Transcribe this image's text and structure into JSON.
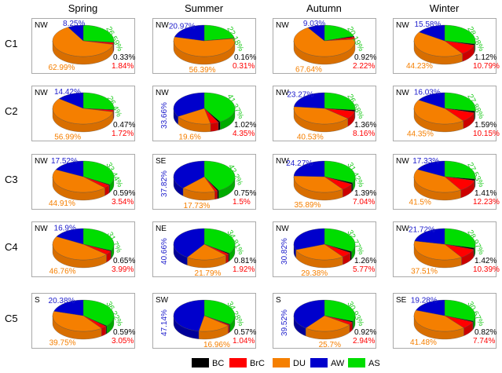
{
  "chart_data": {
    "type": "pie",
    "title": "",
    "columns": [
      "Spring",
      "Summer",
      "Autumn",
      "Winter"
    ],
    "rows": [
      "C1",
      "C2",
      "C3",
      "C4",
      "C5"
    ],
    "legend": {
      "placement": "bottom-right",
      "entries": [
        {
          "name": "BC",
          "color": "#000000"
        },
        {
          "name": "BrC",
          "color": "#ff0000"
        },
        {
          "name": "DU",
          "color": "#f57f00"
        },
        {
          "name": "AW",
          "color": "#0000cc"
        },
        {
          "name": "AS",
          "color": "#00dd00"
        }
      ]
    },
    "slice_order_clockwise_from_top": [
      "AS",
      "BC",
      "BrC",
      "DU",
      "AW"
    ],
    "panels": [
      [
        {
          "direction": "NW",
          "values": {
            "BC": 0.33,
            "BrC": 1.84,
            "DU": 62.99,
            "AW": 8.25,
            "AS": 26.59
          },
          "labels": {
            "BC": "0.33%",
            "BrC": "1.84%",
            "DU": "62.99%",
            "AW": "8.25%",
            "AS": "26.59%"
          }
        },
        {
          "direction": "NW",
          "values": {
            "BC": 0.16,
            "BrC": 0.31,
            "DU": 56.39,
            "AW": 20.97,
            "AS": 22.18
          },
          "labels": {
            "BC": "0.16%",
            "BrC": "0.31%",
            "DU": "56.39%",
            "AW": "20.97%",
            "AS": "22.18%"
          }
        },
        {
          "direction": "NW",
          "values": {
            "BC": 0.92,
            "BrC": 2.22,
            "DU": 67.64,
            "AW": 9.03,
            "AS": 20.19
          },
          "labels": {
            "BC": "0.92%",
            "BrC": "2.22%",
            "DU": "67.64%",
            "AW": "9.03%",
            "AS": "20.19%"
          }
        },
        {
          "direction": "NW",
          "values": {
            "BC": 1.12,
            "BrC": 10.79,
            "DU": 44.23,
            "AW": 15.58,
            "AS": 28.28
          },
          "labels": {
            "BC": "1.12%",
            "BrC": "10.79%",
            "DU": "44.23%",
            "AW": "15.58%",
            "AS": "28.28%"
          }
        }
      ],
      [
        {
          "direction": "NW",
          "values": {
            "BC": 0.47,
            "BrC": 1.72,
            "DU": 56.99,
            "AW": 14.42,
            "AS": 26.4
          },
          "labels": {
            "BC": "0.47%",
            "BrC": "1.72%",
            "DU": "56.99%",
            "AW": "14.42%",
            "AS": "26.4%"
          }
        },
        {
          "direction": "NW",
          "values": {
            "BC": 1.02,
            "BrC": 4.35,
            "DU": 19.6,
            "AW": 33.66,
            "AS": 41.37
          },
          "labels": {
            "BC": "1.02%",
            "BrC": "4.35%",
            "DU": "19.6%",
            "AW": "33.66%",
            "AS": "41.37%"
          }
        },
        {
          "direction": "NW",
          "values": {
            "BC": 1.36,
            "BrC": 8.16,
            "DU": 40.53,
            "AW": 23.27,
            "AS": 26.68
          },
          "labels": {
            "BC": "1.36%",
            "BrC": "8.16%",
            "DU": "40.53%",
            "AW": "23.27%",
            "AS": "26.68%"
          }
        },
        {
          "direction": "NW",
          "values": {
            "BC": 1.59,
            "BrC": 10.15,
            "DU": 44.35,
            "AW": 16.03,
            "AS": 27.88
          },
          "labels": {
            "BC": "1.59%",
            "BrC": "10.15%",
            "DU": "44.35%",
            "AW": "16.03%",
            "AS": "27.88%"
          }
        }
      ],
      [
        {
          "direction": "NW",
          "values": {
            "BC": 0.59,
            "BrC": 3.54,
            "DU": 44.91,
            "AW": 17.52,
            "AS": 33.44
          },
          "labels": {
            "BC": "0.59%",
            "BrC": "3.54%",
            "DU": "44.91%",
            "AW": "17.52%",
            "AS": "33.44%"
          }
        },
        {
          "direction": "SE",
          "values": {
            "BC": 0.75,
            "BrC": 1.5,
            "DU": 17.73,
            "AW": 37.82,
            "AS": 42.2
          },
          "labels": {
            "BC": "0.75%",
            "BrC": "1.5%",
            "DU": "17.73%",
            "AW": "37.82%",
            "AS": "42.2%"
          }
        },
        {
          "direction": "NW",
          "values": {
            "BC": 1.39,
            "BrC": 7.04,
            "DU": 35.89,
            "AW": 24.27,
            "AS": 31.42
          },
          "labels": {
            "BC": "1.39%",
            "BrC": "7.04%",
            "DU": "35.89%",
            "AW": "24.27%",
            "AS": "31.42%"
          }
        },
        {
          "direction": "NW",
          "values": {
            "BC": 1.41,
            "BrC": 12.23,
            "DU": 41.5,
            "AW": 17.33,
            "AS": 27.53
          },
          "labels": {
            "BC": "1.41%",
            "BrC": "12.23%",
            "DU": "41.5%",
            "AW": "17.33%",
            "AS": "27.53%"
          }
        }
      ],
      [
        {
          "direction": "NW",
          "values": {
            "BC": 0.65,
            "BrC": 3.99,
            "DU": 46.76,
            "AW": 16.9,
            "AS": 31.7
          },
          "labels": {
            "BC": "0.65%",
            "BrC": "3.99%",
            "DU": "46.76%",
            "AW": "16.9%",
            "AS": "31.7%"
          }
        },
        {
          "direction": "NE",
          "values": {
            "BC": 0.81,
            "BrC": 1.92,
            "DU": 21.79,
            "AW": 40.66,
            "AS": 34.81
          },
          "labels": {
            "BC": "0.81%",
            "BrC": "1.92%",
            "DU": "21.79%",
            "AW": "40.66%",
            "AS": "34.81%"
          }
        },
        {
          "direction": "NW",
          "values": {
            "BC": 1.26,
            "BrC": 5.77,
            "DU": 29.38,
            "AW": 30.82,
            "AS": 32.77
          },
          "labels": {
            "BC": "1.26%",
            "BrC": "5.77%",
            "DU": "29.38%",
            "AW": "30.82%",
            "AS": "32.77%"
          }
        },
        {
          "direction": "NW",
          "values": {
            "BC": 1.42,
            "BrC": 10.39,
            "DU": 37.51,
            "AW": 21.72,
            "AS": 28.97
          },
          "labels": {
            "BC": "1.42%",
            "BrC": "10.39%",
            "DU": "37.51%",
            "AW": "21.72%",
            "AS": "28.97%"
          }
        }
      ],
      [
        {
          "direction": "S",
          "values": {
            "BC": 0.59,
            "BrC": 3.05,
            "DU": 39.75,
            "AW": 20.38,
            "AS": 36.22
          },
          "labels": {
            "BC": "0.59%",
            "BrC": "3.05%",
            "DU": "39.75%",
            "AW": "20.38%",
            "AS": "36.22%"
          }
        },
        {
          "direction": "SW",
          "values": {
            "BC": 0.57,
            "BrC": 1.04,
            "DU": 16.96,
            "AW": 47.14,
            "AS": 34.28
          },
          "labels": {
            "BC": "0.57%",
            "BrC": "1.04%",
            "DU": "16.96%",
            "AW": "47.14%",
            "AS": "34.28%"
          }
        },
        {
          "direction": "S",
          "values": {
            "BC": 0.92,
            "BrC": 2.94,
            "DU": 25.7,
            "AW": 39.52,
            "AS": 30.93
          },
          "labels": {
            "BC": "0.92%",
            "BrC": "2.94%",
            "DU": "25.7%",
            "AW": "39.52%",
            "AS": "30.93%"
          }
        },
        {
          "direction": "SE",
          "values": {
            "BC": 0.82,
            "BrC": 7.74,
            "DU": 41.48,
            "AW": 19.28,
            "AS": 30.67
          },
          "labels": {
            "BC": "0.82%",
            "BrC": "7.74%",
            "DU": "41.48%",
            "AW": "19.28%",
            "AS": "30.67%"
          }
        }
      ]
    ]
  }
}
